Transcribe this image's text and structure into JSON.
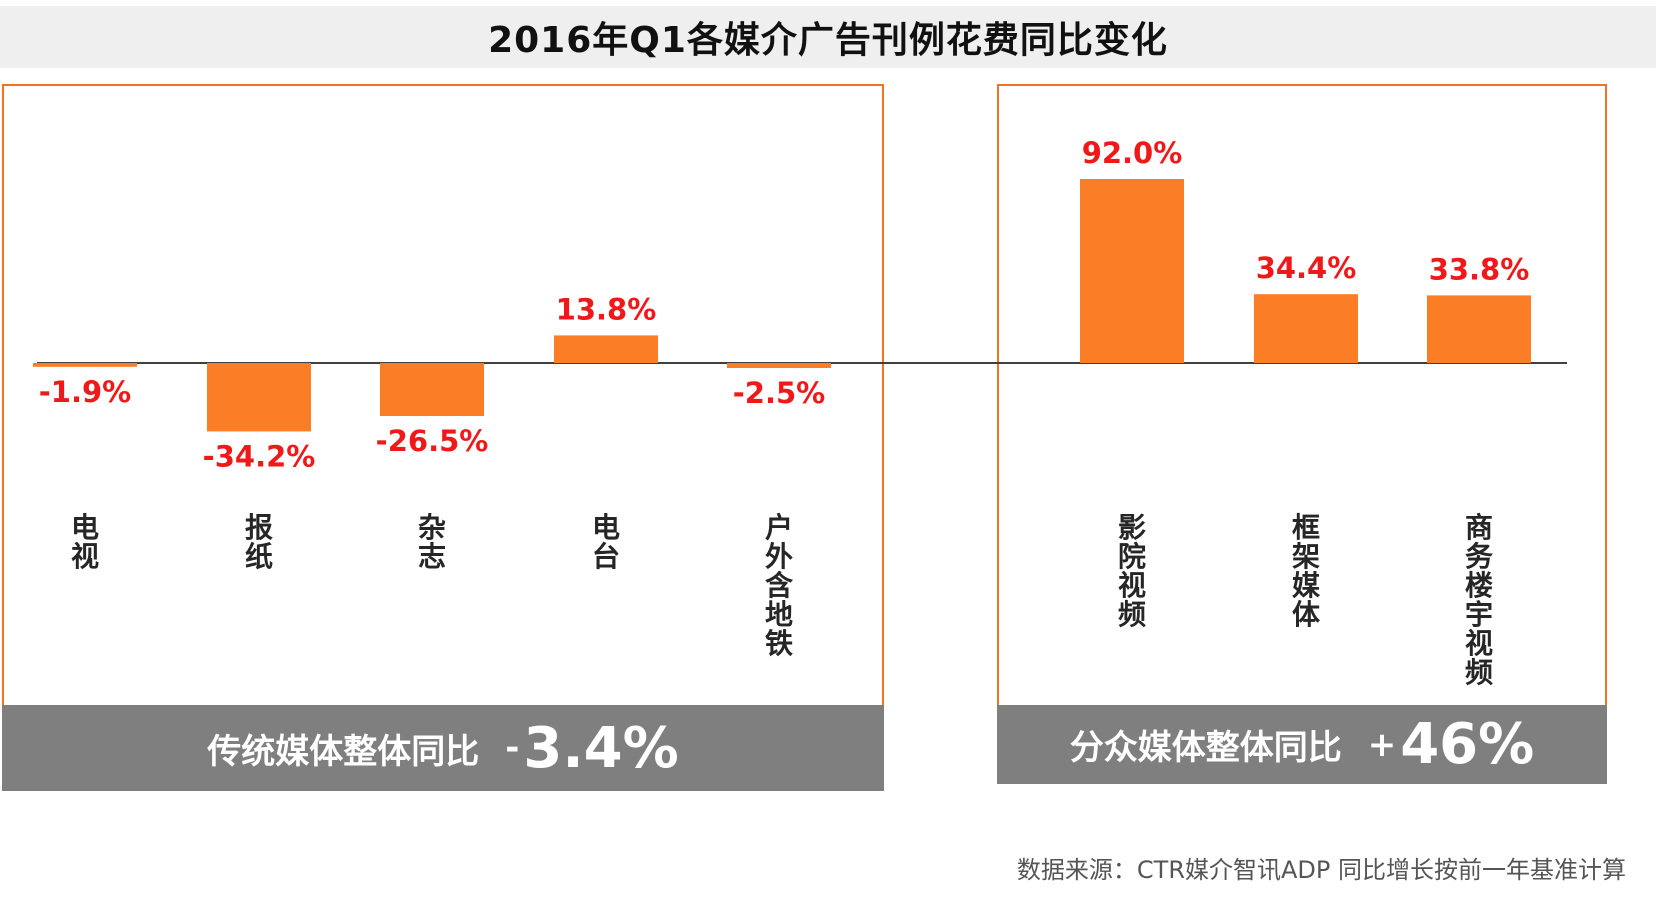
{
  "title": "2016年Q1各媒介广告刊例花费同比变化",
  "chart_data": {
    "type": "bar",
    "ylim": [
      -40,
      100
    ],
    "groups": [
      {
        "categories": [
          "电视",
          "报纸",
          "杂志",
          "电台",
          "户外含地铁"
        ],
        "values": [
          -1.9,
          -34.2,
          -26.5,
          13.8,
          -2.5
        ],
        "labels": [
          "-1.9%",
          "-34.2%",
          "-26.5%",
          "13.8%",
          "-2.5%"
        ]
      },
      {
        "categories": [
          "影院视频",
          "框架媒体",
          "商务楼宇视频"
        ],
        "values": [
          92.0,
          34.4,
          33.8
        ],
        "labels": [
          "92.0%",
          "34.4%",
          "33.8%"
        ]
      }
    ]
  },
  "summary_left": {
    "label": "传统媒体整体同比",
    "sign": "-",
    "value": "3.4%"
  },
  "summary_right": {
    "label": "分众媒体整体同比",
    "sign": "+",
    "value": "46%"
  },
  "source": "数据来源：CTR媒介智讯ADP   同比增长按前一年基准计算",
  "colors": {
    "bar": "#fb7d26",
    "value_label": "#f01818",
    "frame": "#f4731f",
    "summary_bg": "#7f7f7f"
  }
}
